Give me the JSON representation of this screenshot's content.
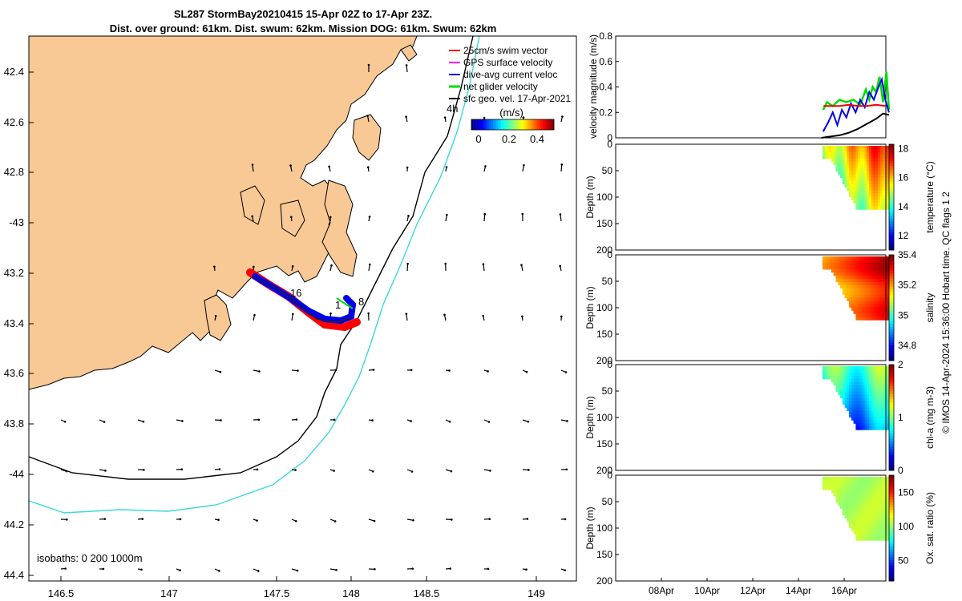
{
  "title": {
    "line1": "SL287 StormBay20210415 15-Apr 02Z to 17-Apr 23Z.",
    "line2": "Dist. over ground: 61km. Dist. swum: 62km. Mission DOG: 61km. Swum: 62km"
  },
  "colors": {
    "land": "#f8c895",
    "iso200": "#000000",
    "iso1000": "#3ad8dc",
    "track_red": "#ff0000",
    "track_blue": "#0000ee",
    "net_green": "#00dd00"
  },
  "map": {
    "lon_ticks": [
      "146.5",
      "147",
      "147.5",
      "148",
      "148.5",
      "149"
    ],
    "lat_ticks": [
      "42.4",
      "42.6",
      "42.8",
      "-43",
      "43.2",
      "43.4",
      "43.6",
      "43.8",
      "-44",
      "44.2",
      "44.4"
    ],
    "track_labels": [
      "16",
      "1",
      "8"
    ],
    "time_label": "4h",
    "isobaths_label": "isobaths: 0   200  1000m",
    "legend": [
      "25cm/s swim vector",
      "GPS surface velocity",
      "dive-avg current veloc",
      "net glider velocity",
      "sfc geo. vel. 17-Apr-2021"
    ],
    "colorbar": {
      "unit": "(m/s)",
      "ticks": [
        "0",
        "0.2",
        "0.4"
      ]
    }
  },
  "chart_data": [
    {
      "type": "line",
      "title": "velocity magnitude",
      "ylabel": "velocity magnitude (m/s)",
      "ylim": [
        0,
        0.8
      ],
      "yticks": [
        "0",
        "0.2",
        "0.4",
        "0.6",
        "0.8"
      ],
      "series": [
        {
          "name": "net glider velocity",
          "color": "#00dd00",
          "x": [
            15.08,
            15.25,
            15.5,
            15.8,
            16.1,
            16.4,
            16.7,
            16.95,
            17.1,
            17.25,
            17.4,
            17.55,
            17.7,
            17.85,
            17.96
          ],
          "y": [
            0.22,
            0.28,
            0.25,
            0.3,
            0.28,
            0.3,
            0.26,
            0.38,
            0.3,
            0.4,
            0.36,
            0.48,
            0.28,
            0.52,
            0.22
          ]
        },
        {
          "name": "dive-avg current",
          "color": "#0000ee",
          "x": [
            15.08,
            15.3,
            15.5,
            15.7,
            15.9,
            16.1,
            16.3,
            16.5,
            16.7,
            16.9,
            17.1,
            17.3,
            17.5,
            17.65,
            17.8,
            17.96
          ],
          "y": [
            0.05,
            0.12,
            0.2,
            0.1,
            0.22,
            0.16,
            0.27,
            0.2,
            0.3,
            0.24,
            0.36,
            0.3,
            0.4,
            0.46,
            0.3,
            0.2
          ]
        },
        {
          "name": "GPS surface velocity",
          "color": "#ee0000",
          "x": [
            15.1,
            15.4,
            15.8,
            16.2,
            16.6,
            17.0,
            17.4,
            17.8
          ],
          "y": [
            0.25,
            0.25,
            0.25,
            0.26,
            0.25,
            0.25,
            0.26,
            0.25
          ]
        },
        {
          "name": "sfc geo. vel.",
          "color": "#000000",
          "x": [
            15.0,
            15.4,
            15.8,
            16.2,
            16.6,
            17.0,
            17.4,
            17.7,
            17.96
          ],
          "y": [
            0.0,
            0.01,
            0.02,
            0.04,
            0.07,
            0.11,
            0.15,
            0.19,
            0.18
          ]
        }
      ]
    },
    {
      "type": "heatmap",
      "colorlabel": "temperature (°C)",
      "ylabel": "Depth (m)",
      "ylim": [
        0,
        200
      ],
      "yticks": [
        "0",
        "50",
        "100",
        "150",
        "200"
      ],
      "clim": [
        11,
        18.3
      ],
      "cticks": [
        "12",
        "14",
        "16",
        "18"
      ]
    },
    {
      "type": "heatmap",
      "colorlabel": "salinity",
      "ylabel": "Depth (m)",
      "ylim": [
        0,
        200
      ],
      "yticks": [
        "0",
        "50",
        "100",
        "150",
        "200"
      ],
      "clim": [
        34.7,
        35.4
      ],
      "cticks": [
        "34.8",
        "35",
        "35.2",
        "35.4"
      ]
    },
    {
      "type": "heatmap",
      "colorlabel": "chl-a (mg m-3)",
      "ylabel": "Depth (m)",
      "ylim": [
        0,
        200
      ],
      "yticks": [
        "0",
        "50",
        "100",
        "150",
        "200"
      ],
      "clim": [
        0,
        2
      ],
      "cticks": [
        "0",
        "1",
        "2"
      ]
    },
    {
      "type": "heatmap",
      "colorlabel": "Ox. sat. ratio (%)",
      "ylabel": "Depth (m)",
      "ylim": [
        0,
        200
      ],
      "yticks": [
        "0",
        "50",
        "100",
        "150",
        "200"
      ],
      "clim": [
        20,
        175
      ],
      "cticks": [
        "50",
        "100",
        "150"
      ]
    }
  ],
  "time_axis": {
    "labels": [
      "08Apr",
      "10Apr",
      "12Apr",
      "14Apr",
      "16Apr"
    ]
  },
  "credit": "© IMOS 14-Apr-2024 15:36:00 Hobart time. QC flags 1  2"
}
